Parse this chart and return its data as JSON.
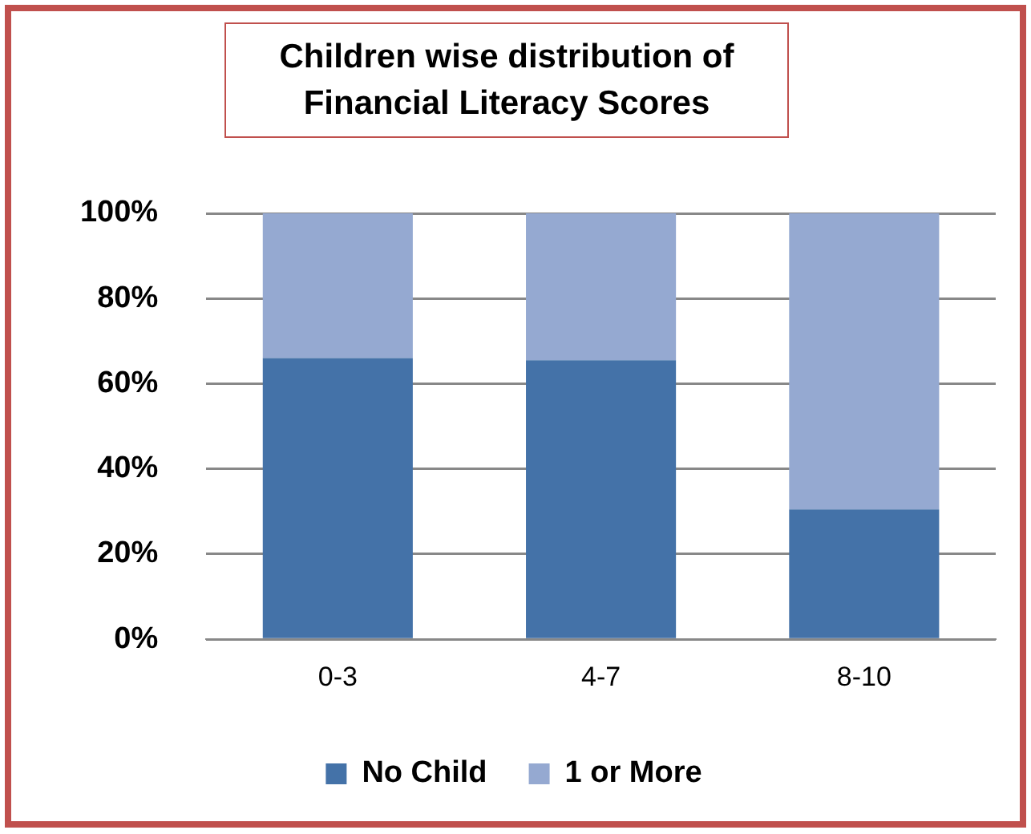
{
  "chart_data": {
    "type": "bar",
    "title": "Children  wise distribution of Financial Literacy Scores",
    "categories": [
      "0-3",
      "4-7",
      "8-10"
    ],
    "stacked": true,
    "series": [
      {
        "name": "No Child",
        "color": "#4472a8",
        "values": [
          66,
          65.5,
          30.5
        ]
      },
      {
        "name": "1 or More",
        "color": "#95a9d1",
        "values": [
          34,
          34.5,
          69.5
        ]
      }
    ],
    "ylim": [
      0,
      100
    ],
    "yticks": [
      {
        "value": 0,
        "label": "0%"
      },
      {
        "value": 20,
        "label": "20%"
      },
      {
        "value": 40,
        "label": "40%"
      },
      {
        "value": 60,
        "label": "60%"
      },
      {
        "value": 80,
        "label": "80%"
      },
      {
        "value": 100,
        "label": "100%"
      }
    ],
    "grid": "y",
    "legend": "bottom"
  }
}
